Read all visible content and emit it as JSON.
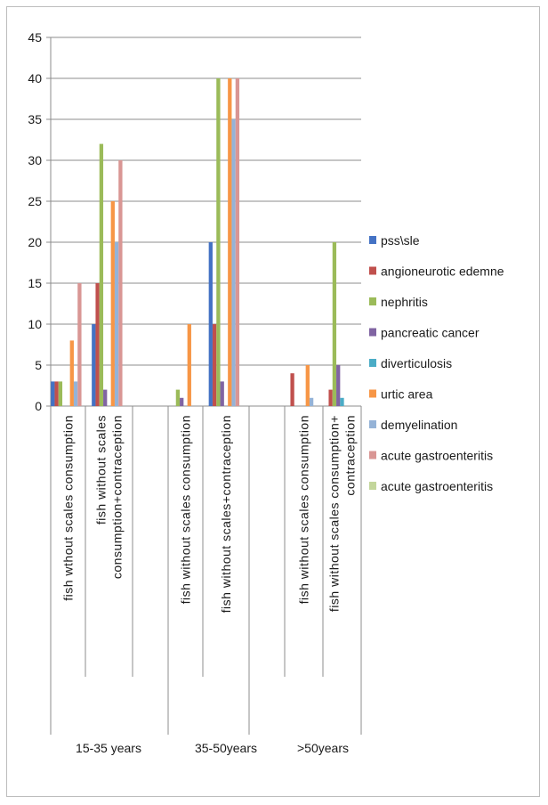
{
  "chart_data": {
    "type": "bar",
    "ylim": [
      0,
      45
    ],
    "yticks": [
      0,
      5,
      10,
      15,
      20,
      25,
      30,
      35,
      40,
      45
    ],
    "grid": true,
    "legend_position": "right",
    "groups": [
      {
        "label": "15-35 years",
        "categories": [
          "fish wthout scales consumption",
          "fish without scales consumption+contraception"
        ]
      },
      {
        "label": "35-50years",
        "categories": [
          "fish without scales consumption",
          "fish without scales+contraception"
        ]
      },
      {
        "label": ">50years",
        "categories": [
          "fish without scales consumption",
          "fish without scales consumption+ contraception"
        ]
      }
    ],
    "categories": [
      "fish wthout scales consumption",
      "fish without scales consumption+contraception",
      "fish without scales consumption",
      "fish without scales+contraception",
      "fish without scales consumption",
      "fish without scales consumption+ contraception"
    ],
    "series": [
      {
        "name": "pss\\sle",
        "color": "#4472c4",
        "values": [
          3,
          10,
          0,
          20,
          0,
          0
        ]
      },
      {
        "name": "angioneurotic edemne",
        "color": "#c0504d",
        "values": [
          3,
          15,
          0,
          10,
          4,
          2
        ]
      },
      {
        "name": "nephritis",
        "color": "#9bbb59",
        "values": [
          3,
          32,
          2,
          40,
          0,
          20
        ]
      },
      {
        "name": "pancreatic cancer",
        "color": "#8064a2",
        "values": [
          0,
          2,
          1,
          3,
          0,
          5
        ]
      },
      {
        "name": "diverticulosis",
        "color": "#4bacc6",
        "values": [
          0,
          0,
          0,
          0,
          0,
          1
        ]
      },
      {
        "name": "urtic area",
        "color": "#f79646",
        "values": [
          8,
          25,
          10,
          40,
          5,
          0
        ]
      },
      {
        "name": "demyelination",
        "color": "#95b3d7",
        "values": [
          3,
          20,
          0,
          35,
          1,
          0
        ]
      },
      {
        "name": "acute gastroenteritis",
        "color": "#d99694",
        "values": [
          15,
          30,
          0,
          40,
          0,
          0
        ]
      },
      {
        "name": "acute gastroenteritis",
        "color": "#c3d69b",
        "values": [
          0,
          0,
          0,
          0,
          0,
          0
        ]
      }
    ]
  }
}
